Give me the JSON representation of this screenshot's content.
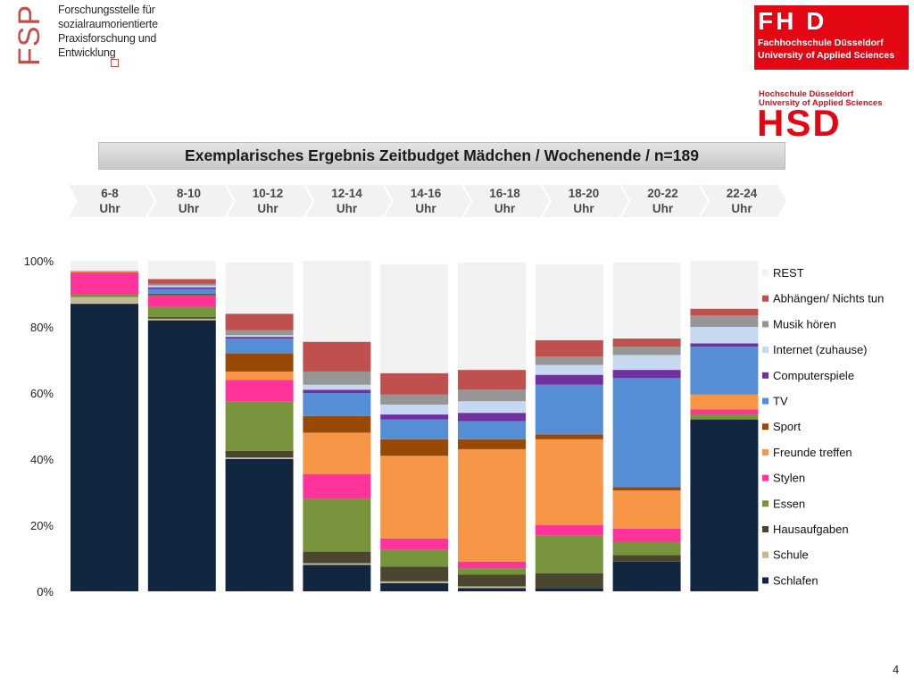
{
  "header": {
    "fspe_letters": "FSPE",
    "fspe_lines": [
      "Forschungsstelle für",
      "sozialraumorientierte",
      "Praxisforschung und",
      "Entwicklung"
    ],
    "fhd_mark": "FH D",
    "fhd_lines": [
      "Fachhochschule Düsseldorf",
      "University of Applied Sciences"
    ],
    "hsd_lines": [
      "Hochschule Düsseldorf",
      "University of Applied Sciences"
    ],
    "hsd_mark": "HSD"
  },
  "page_number": "4",
  "chart_data": {
    "type": "bar",
    "stacked": true,
    "title": "Exemplarisches Ergebnis Zeitbudget Mädchen / Wochenende / n=189",
    "time_slots": [
      [
        "6-8",
        "Uhr"
      ],
      [
        "8-10",
        "Uhr"
      ],
      [
        "10-12",
        "Uhr"
      ],
      [
        "12-14",
        "Uhr"
      ],
      [
        "14-16",
        "Uhr"
      ],
      [
        "16-18",
        "Uhr"
      ],
      [
        "18-20",
        "Uhr"
      ],
      [
        "20-22",
        "Uhr"
      ],
      [
        "22-24",
        "Uhr"
      ]
    ],
    "categories": [
      "6-8 Uhr",
      "8-10 Uhr",
      "10-12 Uhr",
      "12-14 Uhr",
      "14-16 Uhr",
      "16-18 Uhr",
      "18-20 Uhr",
      "20-22 Uhr",
      "22-24 Uhr"
    ],
    "yticks": [
      "0%",
      "20%",
      "40%",
      "60%",
      "80%",
      "100%"
    ],
    "ylim": [
      0,
      100
    ],
    "series": [
      {
        "name": "Schlafen",
        "color": "#13263f",
        "values": [
          87,
          82,
          40,
          8,
          2.5,
          1,
          1,
          9,
          52
        ]
      },
      {
        "name": "Schule",
        "color": "#c4b896",
        "values": [
          2,
          0.5,
          0.5,
          0.5,
          0.5,
          0.5,
          0,
          0,
          0
        ]
      },
      {
        "name": "Hausaufgaben",
        "color": "#4a4630",
        "values": [
          0,
          0.5,
          2,
          3.5,
          4.5,
          3.5,
          4.5,
          2,
          0
        ]
      },
      {
        "name": "Essen",
        "color": "#77933c",
        "values": [
          1,
          3,
          15,
          16,
          5,
          2,
          11.5,
          4,
          1.5
        ]
      },
      {
        "name": "Stylen",
        "color": "#ff3399",
        "values": [
          6.5,
          3.5,
          6.5,
          7.5,
          3.5,
          2,
          3,
          4,
          1.5
        ]
      },
      {
        "name": "Freunde treffen",
        "color": "#f79646",
        "values": [
          0.5,
          0,
          2.5,
          12.5,
          25,
          34,
          26,
          11.5,
          4.5
        ]
      },
      {
        "name": "Sport",
        "color": "#984807",
        "values": [
          0,
          0.5,
          5.5,
          5,
          5,
          3,
          1.5,
          1,
          0
        ]
      },
      {
        "name": "TV",
        "color": "#558ed5",
        "values": [
          0,
          1.5,
          4.5,
          7,
          6,
          5.5,
          15,
          33,
          14.5
        ]
      },
      {
        "name": "Computerspiele",
        "color": "#7030a0",
        "values": [
          0,
          0.5,
          0.5,
          1,
          1.5,
          2.5,
          3,
          2.5,
          1
        ]
      },
      {
        "name": "Internet (zuhause)",
        "color": "#c6d9f1",
        "values": [
          0,
          0.5,
          0.5,
          1.5,
          3,
          3.5,
          3,
          4.5,
          5
        ]
      },
      {
        "name": "Musik hören",
        "color": "#969696",
        "values": [
          0,
          0.5,
          1.5,
          4,
          3,
          3.5,
          2.5,
          2.5,
          3.5
        ]
      },
      {
        "name": "Abhängen/ Nichts tun",
        "color": "#c0504d",
        "values": [
          0,
          1.5,
          5,
          9,
          6.5,
          6,
          5,
          2.5,
          2
        ]
      },
      {
        "name": "REST",
        "color": "#f2f2f2",
        "values": [
          3,
          5.5,
          15.5,
          24.5,
          33,
          32.5,
          23,
          23,
          14.5
        ]
      }
    ],
    "legend_position": "right"
  }
}
